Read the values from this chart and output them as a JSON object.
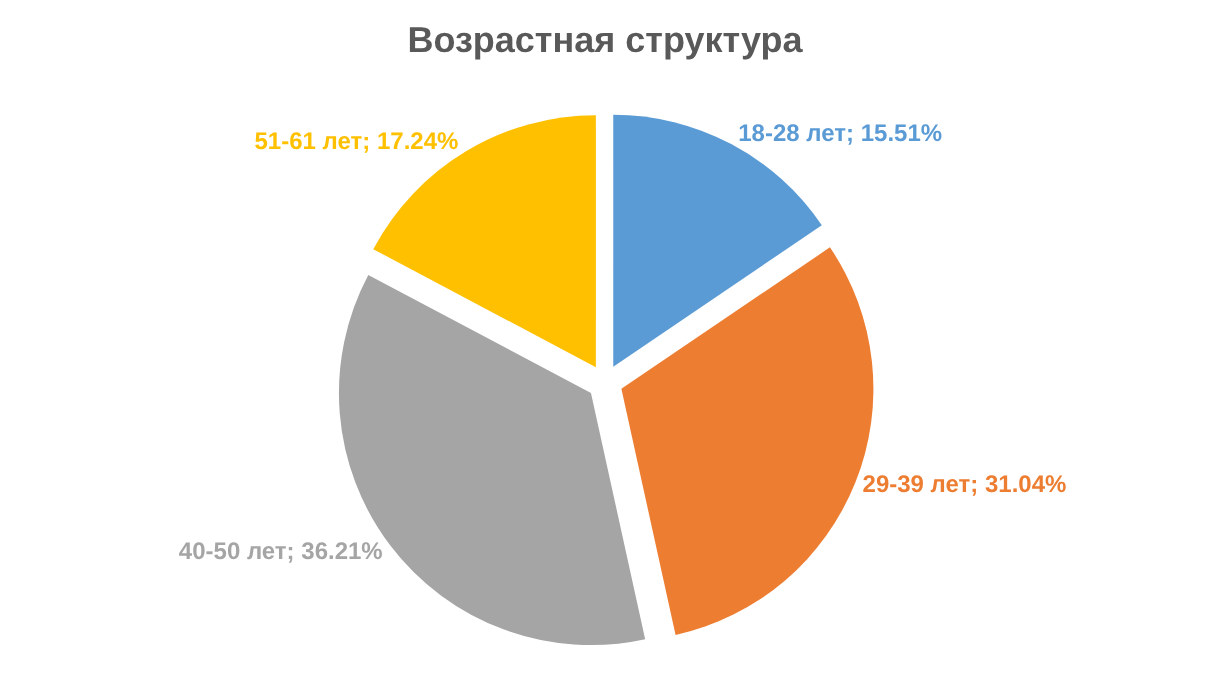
{
  "chart_data": {
    "type": "pie",
    "title": "Возрастная структура",
    "categories": [
      "18-28 лет",
      "29-39 лет",
      "40-50 лет",
      "51-61 лет"
    ],
    "values": [
      15.51,
      31.04,
      36.21,
      17.24
    ],
    "colors": [
      "#5b9bd5",
      "#ed7d31",
      "#a5a5a5",
      "#ffc000"
    ],
    "value_labels": [
      "15.51%",
      "31.04%",
      "36.21%",
      "17.24%"
    ],
    "legend": false
  }
}
